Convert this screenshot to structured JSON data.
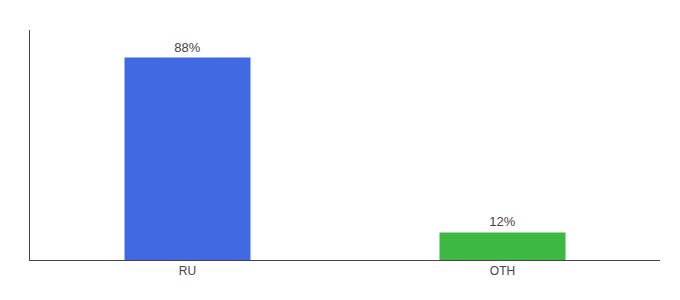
{
  "chart_data": {
    "type": "bar",
    "categories": [
      "RU",
      "OTH"
    ],
    "values": [
      88,
      12
    ],
    "value_labels": [
      "88%",
      "12%"
    ],
    "colors": [
      "#4169e1",
      "#3cb843"
    ],
    "ylim": [
      0,
      100
    ],
    "grid": false,
    "data_labels": true,
    "tick_labels": "x"
  }
}
